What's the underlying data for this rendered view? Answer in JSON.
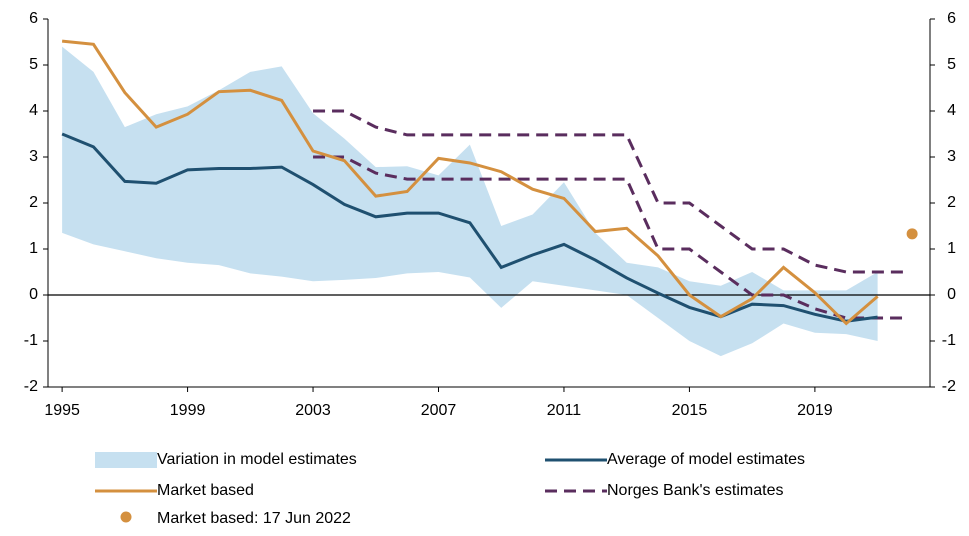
{
  "chart_data": {
    "type": "line",
    "x": [
      1995,
      1996,
      1997,
      1998,
      1999,
      2000,
      2001,
      2002,
      2003,
      2004,
      2005,
      2006,
      2007,
      2008,
      2009,
      2010,
      2011,
      2012,
      2013,
      2014,
      2015,
      2016,
      2017,
      2018,
      2019,
      2020,
      2021
    ],
    "band": {
      "name": "Variation in model estimates",
      "color": "#c6e0f0",
      "high": [
        5.4,
        4.85,
        3.65,
        3.93,
        4.1,
        4.45,
        4.85,
        4.97,
        3.95,
        3.4,
        2.78,
        2.8,
        2.6,
        3.27,
        1.5,
        1.75,
        2.45,
        1.35,
        0.7,
        0.6,
        0.3,
        0.2,
        0.5,
        0.1,
        0.1,
        0.1,
        0.5
      ],
      "low": [
        1.35,
        1.1,
        0.95,
        0.8,
        0.7,
        0.65,
        0.47,
        0.4,
        0.3,
        0.33,
        0.37,
        0.47,
        0.5,
        0.38,
        -0.28,
        0.3,
        0.2,
        0.1,
        0.0,
        -0.5,
        -1.0,
        -1.33,
        -1.05,
        -0.62,
        -0.82,
        -0.85,
        -1.0
      ]
    },
    "series": [
      {
        "name": "Average of model estimates",
        "color": "#1f5070",
        "values": [
          3.5,
          3.22,
          2.47,
          2.43,
          2.72,
          2.75,
          2.75,
          2.78,
          2.4,
          1.97,
          1.7,
          1.78,
          1.78,
          1.57,
          0.6,
          0.87,
          1.1,
          0.76,
          0.37,
          0.04,
          -0.27,
          -0.47,
          -0.2,
          -0.23,
          -0.42,
          -0.57,
          -0.48
        ]
      },
      {
        "name": "Market based",
        "color": "#d4903f",
        "values": [
          5.52,
          5.45,
          4.4,
          3.65,
          3.93,
          4.42,
          4.45,
          4.23,
          3.13,
          2.92,
          2.15,
          2.25,
          2.97,
          2.87,
          2.68,
          2.3,
          2.1,
          1.38,
          1.45,
          0.85,
          0.0,
          -0.47,
          -0.08,
          0.6,
          0.05,
          -0.62,
          -0.03
        ]
      }
    ],
    "norges_bank": {
      "name": "Norges Bank's estimates",
      "color": "#5a2d5e",
      "x": [
        2003,
        2004,
        2005,
        2006,
        2007,
        2008,
        2009,
        2010,
        2011,
        2012,
        2013,
        2014,
        2015,
        2016,
        2017,
        2018,
        2019,
        2020,
        2021,
        2022
      ],
      "high": [
        4.0,
        4.0,
        3.65,
        3.48,
        3.48,
        3.48,
        3.48,
        3.48,
        3.48,
        3.48,
        3.48,
        2.0,
        2.0,
        1.5,
        1.0,
        1.0,
        0.65,
        0.5,
        0.5,
        0.5
      ],
      "low": [
        3.0,
        3.0,
        2.65,
        2.52,
        2.52,
        2.52,
        2.52,
        2.52,
        2.52,
        2.52,
        2.52,
        1.0,
        1.0,
        0.5,
        0.0,
        0.0,
        -0.3,
        -0.5,
        -0.5,
        -0.5
      ]
    },
    "point": {
      "name": "Market based: 17 Jun 2022",
      "color": "#d4903f",
      "x": 2022.1,
      "value": 1.33
    },
    "xlim": [
      1994.55,
      2022.67
    ],
    "xticks": [
      1995,
      1999,
      2003,
      2007,
      2011,
      2015,
      2019
    ],
    "ylim": [
      -2,
      6
    ],
    "yticks": [
      -2,
      -1,
      0,
      1,
      2,
      3,
      4,
      5,
      6
    ],
    "y2lim": [
      -2,
      6
    ],
    "y2ticks": [
      -2,
      -1,
      0,
      1,
      2,
      3,
      4,
      5,
      6
    ]
  }
}
